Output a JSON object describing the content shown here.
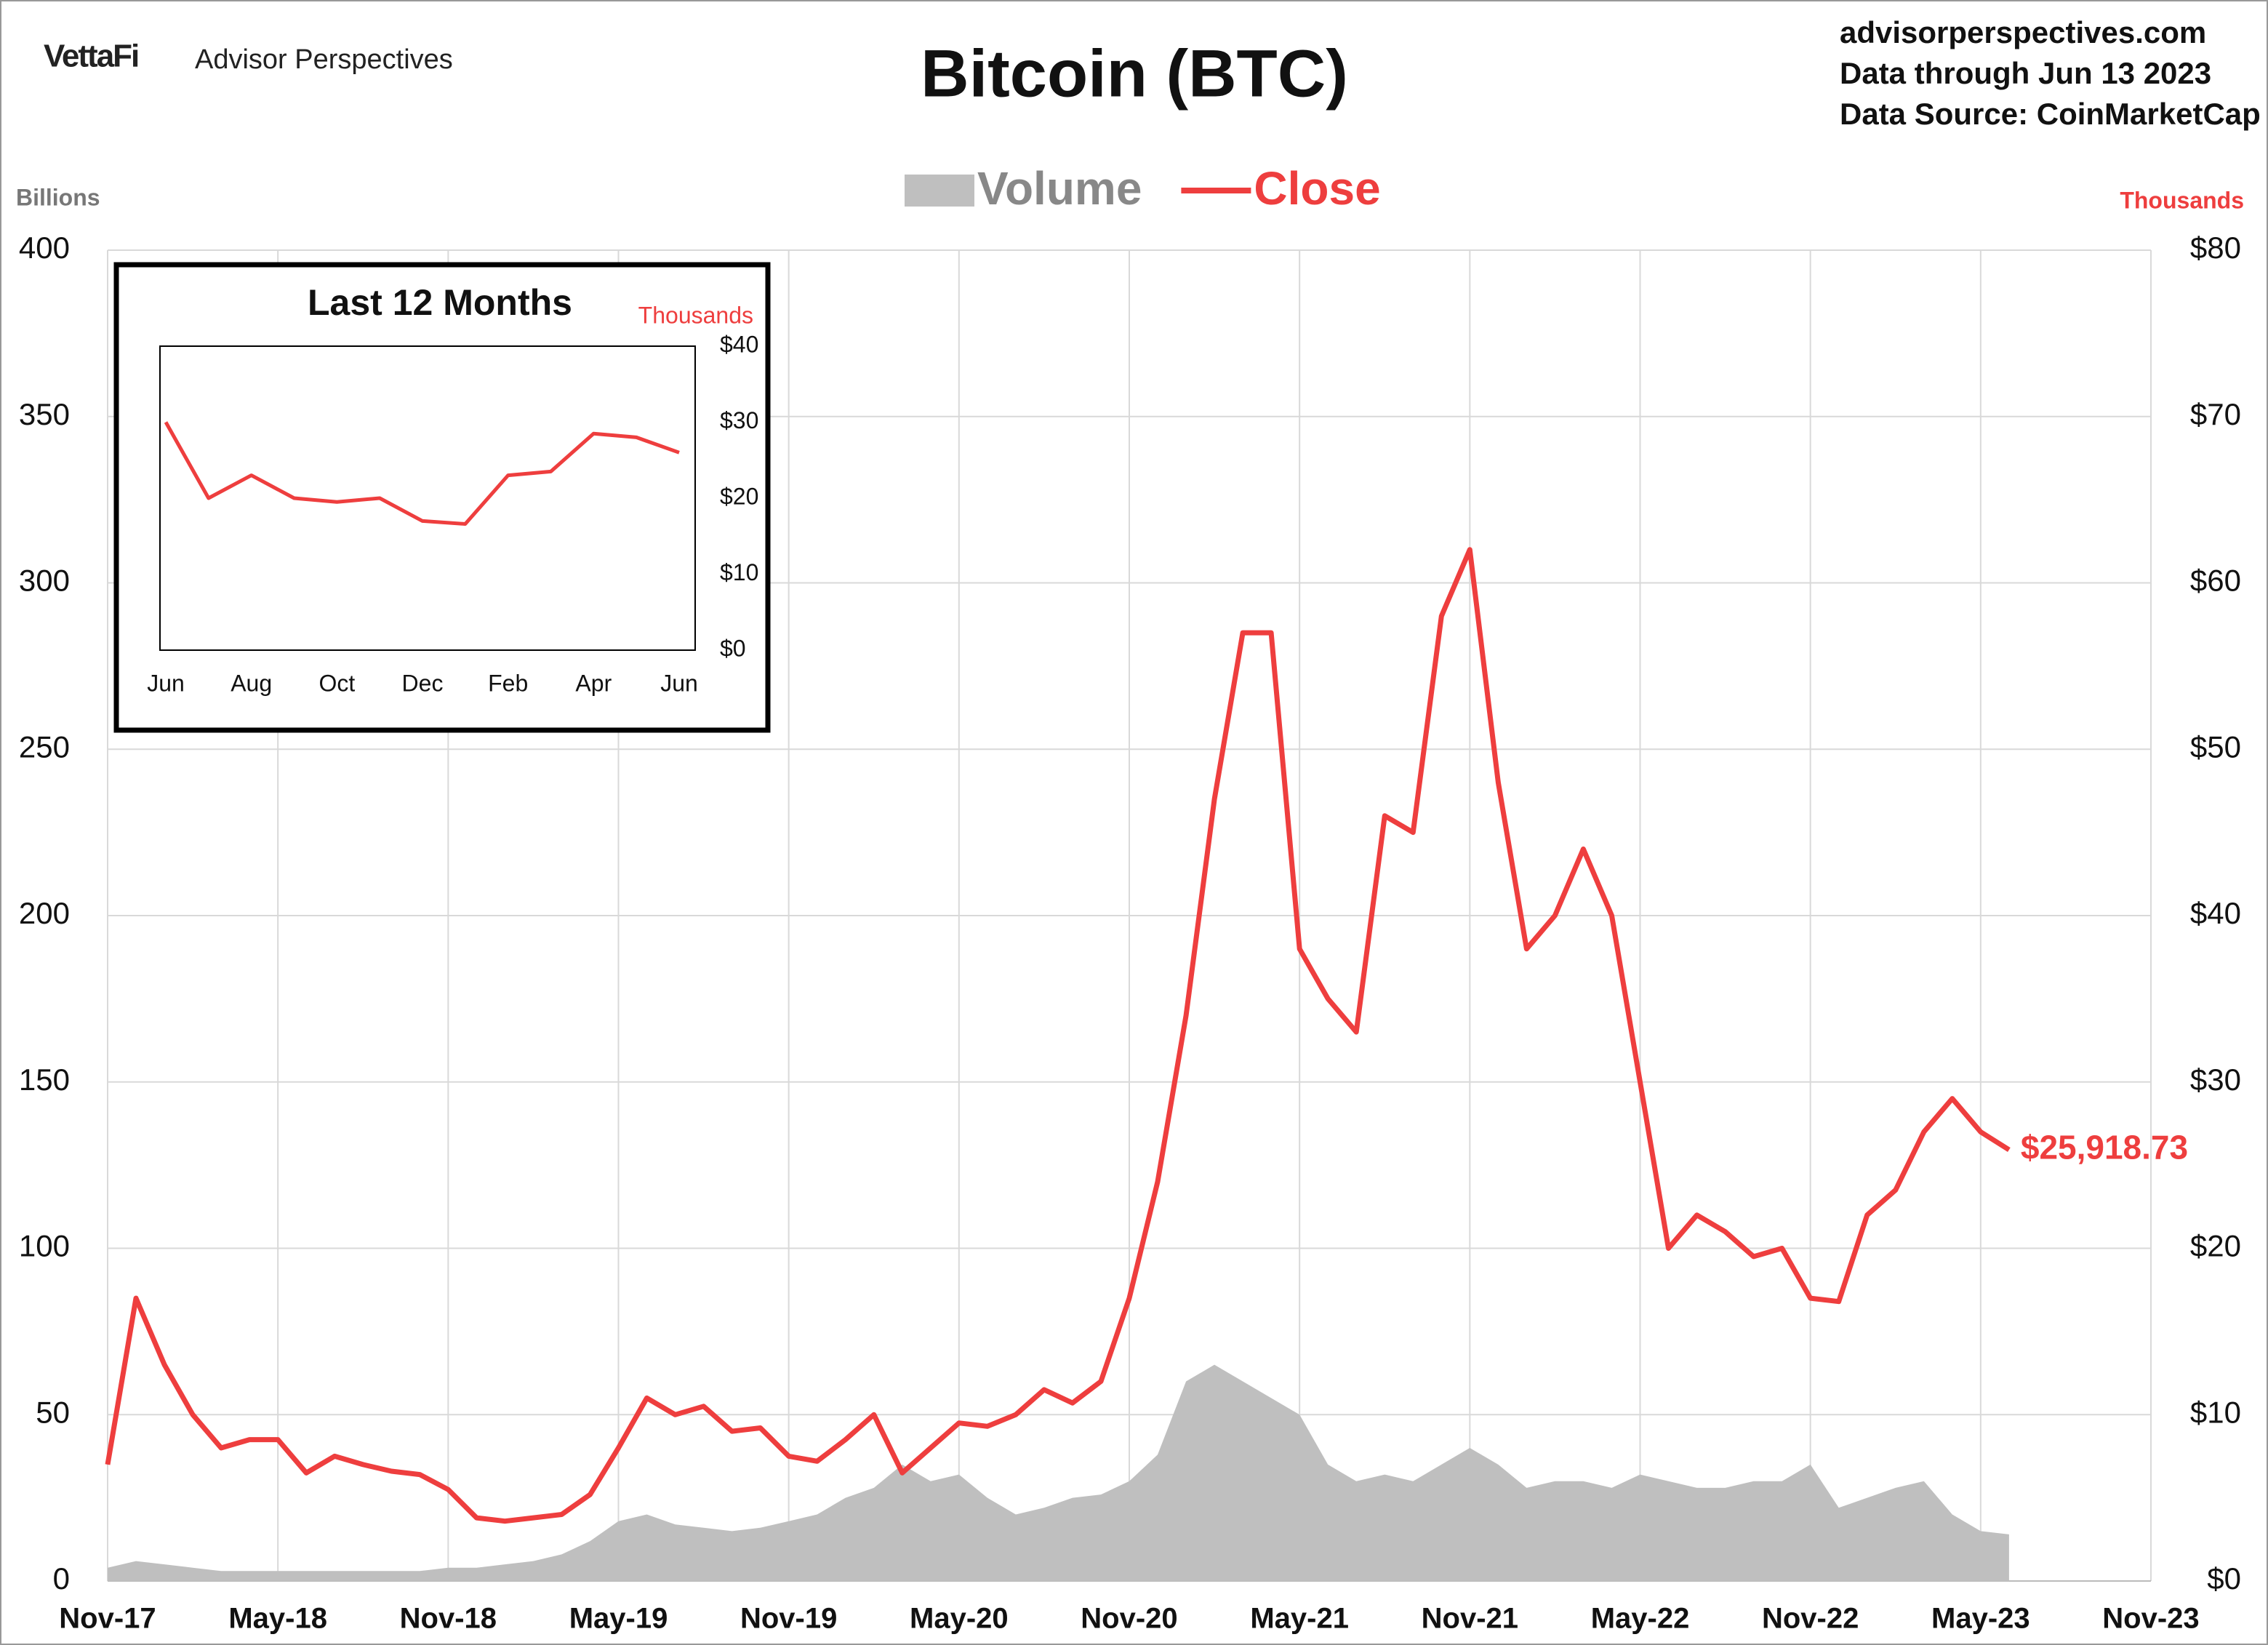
{
  "header": {
    "brand": "VettaFi",
    "publisher": "Advisor Perspectives",
    "site": "advisorperspectives.com",
    "data_through": "Data through Jun 13 2023",
    "data_source": "Data Source: CoinMarketCap"
  },
  "chart_data": [
    {
      "type": "combo",
      "title": "Bitcoin (BTC)",
      "ylabel": "Billions",
      "y2label": "Thousands",
      "x": [
        "Nov-17",
        null,
        null,
        null,
        null,
        null,
        "May-18",
        null,
        null,
        null,
        null,
        null,
        "Nov-18",
        null,
        null,
        null,
        null,
        null,
        "May-19",
        null,
        null,
        null,
        null,
        null,
        "Nov-19",
        null,
        null,
        null,
        null,
        null,
        "May-20",
        null,
        null,
        null,
        null,
        null,
        "Nov-20",
        null,
        null,
        null,
        null,
        null,
        "May-21",
        null,
        null,
        null,
        null,
        null,
        "Nov-21",
        null,
        null,
        null,
        null,
        null,
        "May-22",
        null,
        null,
        null,
        null,
        null,
        "Nov-22",
        null,
        null,
        null,
        null,
        null,
        "May-23",
        null,
        null,
        null,
        null,
        null,
        "Nov-23"
      ],
      "series": [
        {
          "name": "Volume",
          "type": "area",
          "color": "#bfbfbf",
          "values": [
            4,
            6,
            5,
            4,
            3,
            3,
            3,
            3,
            3,
            3,
            3,
            3,
            4,
            4,
            5,
            6,
            8,
            12,
            18,
            20,
            17,
            16,
            15,
            16,
            18,
            20,
            25,
            28,
            35,
            30,
            32,
            25,
            20,
            22,
            25,
            26,
            30,
            38,
            60,
            65,
            60,
            55,
            50,
            35,
            30,
            32,
            30,
            35,
            40,
            35,
            28,
            30,
            30,
            28,
            32,
            30,
            28,
            28,
            30,
            30,
            35,
            22,
            25,
            28,
            30,
            20,
            15,
            14,
            null,
            null,
            null,
            null,
            null
          ]
        },
        {
          "name": "Close",
          "type": "line",
          "axis": "y2",
          "color": "#ee3e3e",
          "values": [
            7,
            17,
            13,
            10,
            8,
            8.5,
            8.5,
            6.5,
            7.5,
            7,
            6.6,
            6.4,
            5.5,
            3.8,
            3.6,
            3.8,
            4,
            5.2,
            8,
            11,
            10,
            10.5,
            9,
            9.2,
            7.5,
            7.2,
            8.5,
            10,
            6.5,
            8,
            9.5,
            9.3,
            10,
            11.5,
            10.7,
            12,
            17,
            24,
            34,
            47,
            57,
            57,
            38,
            35,
            33,
            46,
            45,
            58,
            62,
            48,
            38,
            40,
            44,
            40,
            30,
            20,
            22,
            21,
            19.5,
            20,
            17,
            16.8,
            22,
            23.5,
            27,
            29,
            27,
            25.91873,
            null,
            null,
            null,
            null,
            null
          ]
        }
      ],
      "last_value_label": {
        "value": 25.91873,
        "label": "$25,918.73"
      },
      "ylim": [
        0,
        400
      ],
      "yticks": [
        0,
        50,
        100,
        150,
        200,
        250,
        300,
        350,
        400
      ],
      "y2lim": [
        0,
        80
      ],
      "y2ticks": [
        {
          "value": 0,
          "label": "$0"
        },
        {
          "value": 10,
          "label": "$10"
        },
        {
          "value": 20,
          "label": "$20"
        },
        {
          "value": 30,
          "label": "$30"
        },
        {
          "value": 40,
          "label": "$40"
        },
        {
          "value": 50,
          "label": "$50"
        },
        {
          "value": 60,
          "label": "$60"
        },
        {
          "value": 70,
          "label": "$70"
        },
        {
          "value": 80,
          "label": "$80"
        }
      ],
      "grid": true
    },
    {
      "type": "line",
      "title": "Last 12 Months",
      "y2label": "Thousands",
      "categories": [
        "Jun",
        null,
        "Aug",
        null,
        "Oct",
        null,
        "Dec",
        null,
        "Feb",
        null,
        "Apr",
        null,
        "Jun"
      ],
      "values": [
        30,
        20,
        23,
        20,
        19.5,
        20,
        17,
        16.6,
        23,
        23.5,
        28.5,
        28,
        26
      ],
      "color": "#ee3e3e",
      "y2lim": [
        0,
        40
      ],
      "y2ticks": [
        {
          "value": 0,
          "label": "$0"
        },
        {
          "value": 10,
          "label": "$10"
        },
        {
          "value": 20,
          "label": "$20"
        },
        {
          "value": 30,
          "label": "$30"
        },
        {
          "value": 40,
          "label": "$40"
        }
      ]
    }
  ]
}
